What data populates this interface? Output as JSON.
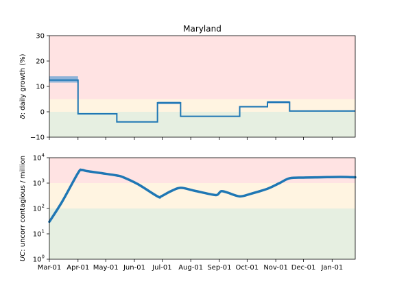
{
  "chart_data": [
    {
      "type": "line",
      "title": "Maryland",
      "xlabel": "",
      "ylabel": "δ: daily growth (%)",
      "ylabel_symbol": "δ",
      "ylabel_rest": ": daily growth (%)",
      "x_range": [
        "2020-03-01",
        "2021-01-26"
      ],
      "ylim": [
        -10,
        30
      ],
      "yticks": [
        -10,
        0,
        10,
        20,
        30
      ],
      "ytick_labels": [
        "−10",
        "0",
        "10",
        "20",
        "30"
      ],
      "bands": [
        {
          "from": 5,
          "to": 30,
          "color": "#ffe3e3"
        },
        {
          "from": 0,
          "to": 5,
          "color": "#fff4e1"
        },
        {
          "from": -10,
          "to": 0,
          "color": "#e6efe1"
        }
      ],
      "line_color": "#1f77b4",
      "uncertainty_color": "#8fb3d8",
      "steps": [
        {
          "start": "2020-03-01",
          "end": "2020-04-01",
          "value": 12.5,
          "lo": 11.5,
          "hi": 14.0
        },
        {
          "start": "2020-04-01",
          "end": "2020-05-13",
          "value": -0.8,
          "lo": -1.0,
          "hi": -0.6
        },
        {
          "start": "2020-05-13",
          "end": "2020-06-26",
          "value": -4.0,
          "lo": -4.2,
          "hi": -3.8
        },
        {
          "start": "2020-06-26",
          "end": "2020-07-21",
          "value": 3.5,
          "lo": 3.0,
          "hi": 4.0
        },
        {
          "start": "2020-07-21",
          "end": "2020-09-23",
          "value": -1.8,
          "lo": -2.0,
          "hi": -1.6
        },
        {
          "start": "2020-09-23",
          "end": "2020-10-23",
          "value": 2.0,
          "lo": 1.8,
          "hi": 2.2
        },
        {
          "start": "2020-10-23",
          "end": "2020-11-16",
          "value": 3.8,
          "lo": 3.3,
          "hi": 4.3
        },
        {
          "start": "2020-11-16",
          "end": "2021-01-26",
          "value": 0.3,
          "lo": 0.2,
          "hi": 0.4
        }
      ]
    },
    {
      "type": "line",
      "title": "",
      "xlabel": "",
      "ylabel": "UC: uncorr contagious / million",
      "ylabel_symbol": "UC",
      "ylabel_rest": ": uncorr contagious / million",
      "scale": "log",
      "x_range": [
        "2020-03-01",
        "2021-01-26"
      ],
      "ylim": [
        1,
        10000
      ],
      "yticks": [
        1,
        10,
        100,
        1000,
        10000
      ],
      "ytick_labels": [
        {
          "base": "10",
          "exp": "0"
        },
        {
          "base": "10",
          "exp": "1"
        },
        {
          "base": "10",
          "exp": "2"
        },
        {
          "base": "10",
          "exp": "3"
        },
        {
          "base": "10",
          "exp": "4"
        }
      ],
      "bands": [
        {
          "from": 1000,
          "to": 10000,
          "color": "#ffe3e3"
        },
        {
          "from": 100,
          "to": 1000,
          "color": "#fff4e1"
        },
        {
          "from": 1,
          "to": 100,
          "color": "#e6efe1"
        }
      ],
      "line_color": "#1f77b4",
      "series": [
        {
          "x": [
            "2020-03-01",
            "2020-03-15",
            "2020-04-01",
            "2020-04-05",
            "2020-04-10",
            "2020-04-25",
            "2020-05-13",
            "2020-05-20",
            "2020-06-05",
            "2020-06-26",
            "2020-06-30",
            "2020-07-10",
            "2020-07-21",
            "2020-08-05",
            "2020-08-25",
            "2020-08-30",
            "2020-09-03",
            "2020-09-10",
            "2020-09-23",
            "2020-10-05",
            "2020-10-23",
            "2020-11-05",
            "2020-11-16",
            "2020-12-01",
            "2020-12-20",
            "2021-01-10",
            "2021-01-26"
          ],
          "y": [
            30,
            190,
            2500,
            3300,
            3000,
            2500,
            2000,
            1700,
            900,
            300,
            300,
            470,
            650,
            500,
            350,
            350,
            480,
            420,
            300,
            380,
            600,
            1000,
            1550,
            1650,
            1700,
            1750,
            1700
          ]
        }
      ]
    }
  ],
  "x_axis": {
    "ticks": [
      "2020-03-01",
      "2020-04-01",
      "2020-05-01",
      "2020-06-01",
      "2020-07-01",
      "2020-08-01",
      "2020-09-01",
      "2020-10-01",
      "2020-11-01",
      "2020-12-01",
      "2021-01-01"
    ],
    "labels": [
      "Mar-01",
      "Apr-01",
      "May-01",
      "Jun-01",
      "Jul-01",
      "Aug-01",
      "Sep-01",
      "Oct-01",
      "Nov-01",
      "Dec-01",
      "Jan-01"
    ]
  }
}
